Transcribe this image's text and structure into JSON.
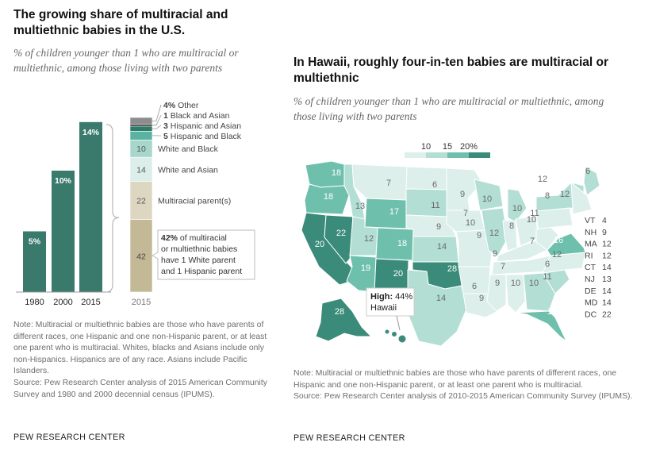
{
  "left": {
    "title": "The growing share of multiracial and multiethnic babies in the U.S.",
    "subtitle": "% of children younger than 1 who are multiracial or multiethnic, among those living with two parents",
    "note": "Note: Multiracial or multiethnic babies are those who have parents of different races, one Hispanic and one non-Hispanic parent, or at least one parent who is multiracial. Whites, blacks and Asians include only non-Hispanics. Hispanics are of any race. Asians include Pacific Islanders.",
    "source": "Source: Pew Research Center analysis of 2015 American Community Survey and 1980 and 2000 decennial census (IPUMS).",
    "brand": "PEW RESEARCH CENTER"
  },
  "right": {
    "title": "In Hawaii, roughly four-in-ten babies are multiracial or multiethnic",
    "subtitle": "% of children younger than 1 who are multiracial or multiethnic, among those living with two parents",
    "note": "Note: Multiracial or multiethnic babies are those who have parents of different races, one Hispanic and one non-Hispanic parent, or at least one parent who is multiracial.",
    "source": "Source: Pew Research Center analysis of 2010-2015 American Community Survey (IPUMS).",
    "brand": "PEW RESEARCH CENTER"
  },
  "chart_data": [
    {
      "type": "bar",
      "categories": [
        "1980",
        "2000",
        "2015"
      ],
      "values": [
        5,
        10,
        14
      ],
      "data_labels": [
        "5%",
        "10%",
        "14%"
      ],
      "ylim": [
        0,
        14
      ],
      "bar_color": "#3a7a6c"
    },
    {
      "type": "bar",
      "stacked": true,
      "categories": [
        "2015"
      ],
      "series": [
        {
          "name": "Multiracial parent(s)",
          "value": 22,
          "color": "#ddd6c1"
        },
        {
          "name": "White and Asian",
          "value": 14,
          "color": "#dbeee9"
        },
        {
          "name": "White and Black",
          "value": 10,
          "color": "#a7d6ca"
        },
        {
          "name": "Hispanic and Black",
          "value": 5,
          "color": "#5ab3a2"
        },
        {
          "name": "Hispanic and Asian",
          "value": 3,
          "color": "#2e7b6a"
        },
        {
          "name": "Black and Asian",
          "value": 1,
          "color": "#222222"
        },
        {
          "name": "Other",
          "value": 4,
          "color": "#8d8d8d"
        }
      ],
      "base_segment": {
        "value": 42,
        "color": "#c3b996"
      },
      "annotation": {
        "value": "42%",
        "text": [
          "of multiracial",
          "or multiethnic babies",
          "have 1 White parent",
          "and 1 Hispanic parent"
        ]
      },
      "segment_labels": [
        "42",
        "22",
        "14",
        "10"
      ],
      "legend_numbers": [
        "4%",
        "1",
        "3",
        "5"
      ],
      "xlabel": "2015"
    },
    {
      "type": "choropleth",
      "legend": {
        "values": [
          "10",
          "15",
          "20%"
        ],
        "colors": [
          "#dcefea",
          "#b2ded3",
          "#6ec0ad",
          "#3a8b79"
        ]
      },
      "state_labels": [
        {
          "label": "18"
        },
        {
          "label": "18"
        },
        {
          "label": "22"
        },
        {
          "label": "20"
        },
        {
          "label": "13"
        },
        {
          "label": "7"
        },
        {
          "label": "17"
        },
        {
          "label": "12"
        },
        {
          "label": "19"
        },
        {
          "label": "18"
        },
        {
          "label": "20"
        },
        {
          "label": "6"
        },
        {
          "label": "11"
        },
        {
          "label": "9"
        },
        {
          "label": "14"
        },
        {
          "label": "28"
        },
        {
          "label": "14"
        },
        {
          "label": "9"
        },
        {
          "label": "7"
        },
        {
          "label": "10"
        },
        {
          "label": "9"
        },
        {
          "label": "6"
        },
        {
          "label": "10"
        },
        {
          "label": "12"
        },
        {
          "label": "8"
        },
        {
          "label": "9"
        },
        {
          "label": "10"
        },
        {
          "label": "10"
        },
        {
          "label": "9"
        },
        {
          "label": "7"
        },
        {
          "label": "10"
        },
        {
          "label": "8"
        },
        {
          "label": "12"
        },
        {
          "label": "6"
        },
        {
          "label": "16"
        },
        {
          "label": "12"
        },
        {
          "label": "11"
        },
        {
          "label": "7"
        },
        {
          "label": "9"
        },
        {
          "label": "10"
        },
        {
          "label": "11"
        },
        {
          "label": "18"
        },
        {
          "label": "6"
        },
        {
          "label": "12"
        },
        {
          "label": "28"
        }
      ],
      "small_states": [
        {
          "state": "VT",
          "value": "4"
        },
        {
          "state": "NH",
          "value": "9"
        },
        {
          "state": "MA",
          "value": "12"
        },
        {
          "state": "RI",
          "value": "12"
        },
        {
          "state": "CT",
          "value": "14"
        },
        {
          "state": "NJ",
          "value": "13"
        },
        {
          "state": "DE",
          "value": "14"
        },
        {
          "state": "MD",
          "value": "14"
        },
        {
          "state": "DC",
          "value": "22"
        }
      ],
      "callout": {
        "label": "High:",
        "value": "44%",
        "state": "Hawaii"
      }
    }
  ]
}
